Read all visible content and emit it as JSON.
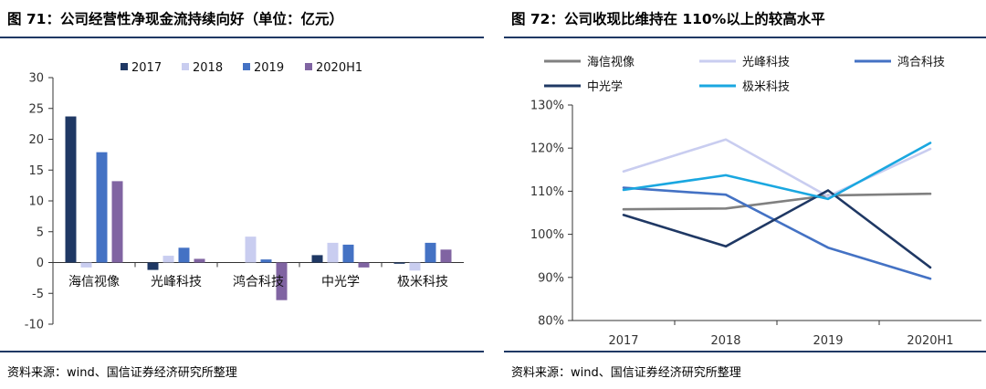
{
  "left_panel": {
    "title": "图 71：公司经营性净现金流持续向好（单位：亿元）",
    "source": "资料来源：wind、国信证券经济研究所整理"
  },
  "right_panel": {
    "title": "图 72：公司收现比维持在 110%以上的较高水平",
    "source": "资料来源：wind、国信证券经济研究所整理"
  },
  "chart_data": [
    {
      "type": "bar",
      "title": "公司经营性净现金流持续向好（单位：亿元）",
      "categories": [
        "海信视像",
        "光峰科技",
        "鸿合科技",
        "中光学",
        "极米科技"
      ],
      "series": [
        {
          "name": "2017",
          "color": "#1f3864",
          "values": [
            23.7,
            -1.2,
            0,
            1.2,
            -0.2
          ]
        },
        {
          "name": "2018",
          "color": "#c9cdf0",
          "values": [
            -0.8,
            1.1,
            4.2,
            3.2,
            -1.3
          ]
        },
        {
          "name": "2019",
          "color": "#4472c4",
          "values": [
            17.9,
            2.4,
            0.5,
            2.9,
            3.2
          ]
        },
        {
          "name": "2020H1",
          "color": "#8064a2",
          "values": [
            13.2,
            0.6,
            -6.1,
            -0.8,
            2.1
          ]
        }
      ],
      "ylim": [
        -10,
        30
      ],
      "yticks": [
        -10,
        -5,
        0,
        5,
        10,
        15,
        20,
        25,
        30
      ],
      "ytick_labels": [
        "-10",
        "-5",
        "0",
        "5",
        "10",
        "15",
        "20",
        "25",
        "30"
      ],
      "xlabel": "",
      "ylabel": "",
      "legend": "top"
    },
    {
      "type": "line",
      "title": "公司收现比维持在 110%以上的较高水平",
      "x": [
        "2017",
        "2018",
        "2019",
        "2020H1"
      ],
      "series": [
        {
          "name": "海信视像",
          "color": "#808080",
          "values": [
            105.8,
            106.0,
            109.0,
            109.4
          ]
        },
        {
          "name": "光峰科技",
          "color": "#c9cdf0",
          "values": [
            114.6,
            122.0,
            108.8,
            119.8
          ]
        },
        {
          "name": "鸿合科技",
          "color": "#4472c4",
          "values": [
            110.8,
            109.2,
            96.9,
            89.7
          ]
        },
        {
          "name": "中光学",
          "color": "#1f3864",
          "values": [
            104.5,
            97.2,
            110.2,
            92.3
          ]
        },
        {
          "name": "极米科技",
          "color": "#1aa7e0",
          "values": [
            110.3,
            113.7,
            108.2,
            121.2
          ]
        }
      ],
      "ylim": [
        80,
        130
      ],
      "yticks": [
        80,
        90,
        100,
        110,
        120,
        130
      ],
      "ytick_labels": [
        "80%",
        "90%",
        "100%",
        "110%",
        "120%",
        "130%"
      ],
      "xlabel": "",
      "ylabel": "",
      "legend": "top"
    }
  ]
}
